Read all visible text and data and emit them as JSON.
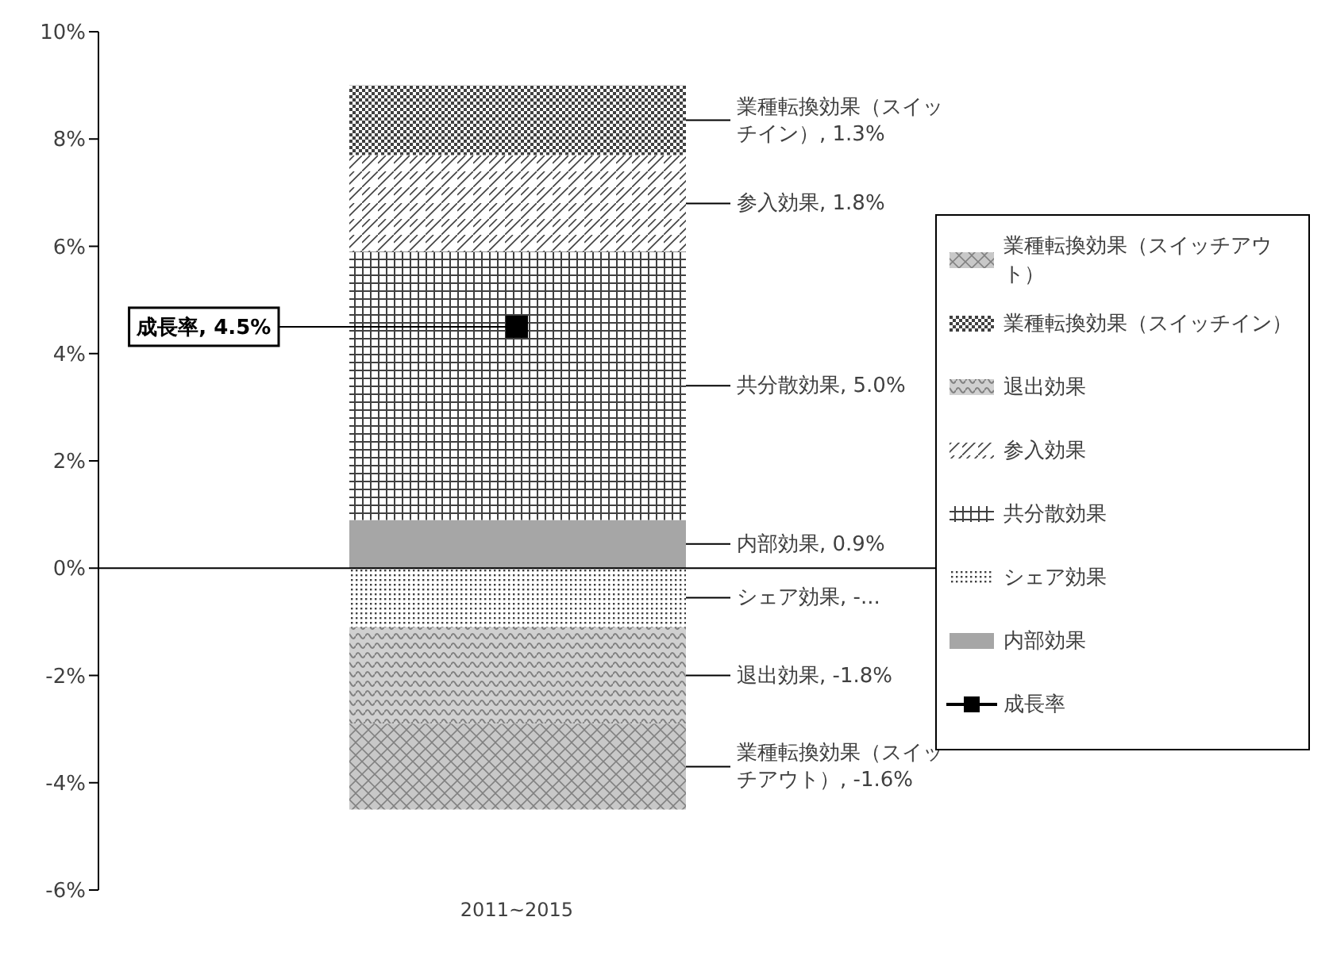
{
  "chart_data": {
    "type": "bar",
    "stacked": true,
    "categories": [
      "2011~2015"
    ],
    "series": [
      {
        "name": "内部効果",
        "color": "#a6a6a6",
        "values": [
          0.9
        ],
        "value_labels": [
          "内部効果, 0.9%"
        ]
      },
      {
        "name": "シェア効果",
        "color": "#404040",
        "values": [
          -1.1
        ],
        "value_labels": [
          "シェア効果, -..."
        ]
      },
      {
        "name": "共分散効果",
        "color": "#404040",
        "values": [
          5.0
        ],
        "value_labels": [
          "共分散効果, 5.0%"
        ]
      },
      {
        "name": "参入効果",
        "color": "#404040",
        "values": [
          1.8
        ],
        "value_labels": [
          "参入効果, 1.8%"
        ]
      },
      {
        "name": "退出効果",
        "color": "#808080",
        "values": [
          -1.8
        ],
        "value_labels": [
          "退出効果, -1.8%"
        ]
      },
      {
        "name": "業種転換効果（スイッチイン）",
        "color": "#404040",
        "values": [
          1.3
        ],
        "value_labels": [
          "業種転換効果（スイッチイン）, 1.3%"
        ]
      },
      {
        "name": "業種転換効果（スイッチアウト）",
        "color": "#808080",
        "values": [
          -1.6
        ],
        "value_labels": [
          "業種転換効果（スイッチアウト）, -1.6%"
        ]
      },
      {
        "name": "成長率",
        "type": "line",
        "color": "#000000",
        "marker": "square",
        "values": [
          4.5
        ],
        "value_labels": [
          "成長率, 4.5%"
        ]
      }
    ],
    "ylim": [
      -6,
      10
    ],
    "yticks": [
      {
        "value": -6,
        "label": "-6%"
      },
      {
        "value": -4,
        "label": "-4%"
      },
      {
        "value": -2,
        "label": "-2%"
      },
      {
        "value": 0,
        "label": "0%"
      },
      {
        "value": 2,
        "label": "2%"
      },
      {
        "value": 4,
        "label": "4%"
      },
      {
        "value": 6,
        "label": "6%"
      },
      {
        "value": 8,
        "label": "8%"
      },
      {
        "value": 10,
        "label": "10%"
      }
    ],
    "grid": false,
    "legend": "right"
  }
}
